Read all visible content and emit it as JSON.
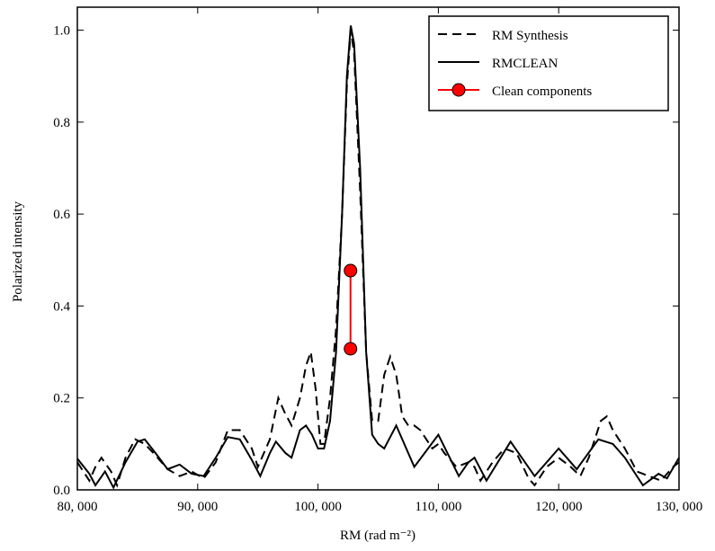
{
  "chart_data": {
    "type": "line",
    "x_label": "RM (rad m⁻²)",
    "y_label": "Polarized intensity",
    "xlim": [
      80000,
      130000
    ],
    "ylim": [
      0,
      1.05
    ],
    "xticks": [
      {
        "value": 80000,
        "label": "80, 000"
      },
      {
        "value": 90000,
        "label": "90, 000"
      },
      {
        "value": 100000,
        "label": "100, 000"
      },
      {
        "value": 110000,
        "label": "110, 000"
      },
      {
        "value": 120000,
        "label": "120, 000"
      },
      {
        "value": 130000,
        "label": "130, 000"
      }
    ],
    "yticks": [
      {
        "value": 0,
        "label": "0.0"
      },
      {
        "value": 0.2,
        "label": "0.2"
      },
      {
        "value": 0.4,
        "label": "0.4"
      },
      {
        "value": 0.6,
        "label": "0.6"
      },
      {
        "value": 0.8,
        "label": "0.8"
      },
      {
        "value": 1,
        "label": "1.0"
      }
    ],
    "grid": false,
    "legend": "upper right",
    "series": [
      {
        "name": "RM Synthesis",
        "color": "#000000",
        "linestyle": "dashed",
        "x": [
          80000,
          81000,
          81500,
          82000,
          82800,
          83300,
          84000,
          84800,
          85600,
          86500,
          87500,
          88500,
          89500,
          90500,
          91500,
          92500,
          93500,
          94500,
          95000,
          96000,
          96700,
          97200,
          97800,
          98500,
          99000,
          99400,
          99800,
          100200,
          100500,
          101000,
          101500,
          102000,
          102400,
          102720,
          103000,
          103500,
          104000,
          104500,
          105000,
          105500,
          106000,
          106500,
          107000,
          107500,
          108000,
          108500,
          109500,
          110000,
          110500,
          111500,
          112500,
          113000,
          113500,
          114500,
          115500,
          116500,
          117500,
          118000,
          119000,
          120000,
          121000,
          121800,
          122500,
          123500,
          124000,
          124500,
          125500,
          126500,
          127500,
          128500,
          129500,
          130000
        ],
        "values": [
          0.06,
          0.02,
          0.05,
          0.07,
          0.04,
          0.01,
          0.07,
          0.11,
          0.1,
          0.075,
          0.045,
          0.03,
          0.04,
          0.025,
          0.06,
          0.13,
          0.13,
          0.09,
          0.05,
          0.11,
          0.2,
          0.17,
          0.14,
          0.2,
          0.27,
          0.3,
          0.22,
          0.1,
          0.1,
          0.2,
          0.35,
          0.6,
          0.88,
          1.0,
          0.95,
          0.65,
          0.3,
          0.15,
          0.15,
          0.25,
          0.29,
          0.25,
          0.16,
          0.14,
          0.14,
          0.13,
          0.09,
          0.1,
          0.08,
          0.05,
          0.06,
          0.05,
          0.02,
          0.06,
          0.09,
          0.08,
          0.025,
          0.01,
          0.05,
          0.07,
          0.05,
          0.03,
          0.07,
          0.15,
          0.16,
          0.13,
          0.09,
          0.04,
          0.03,
          0.02,
          0.05,
          0.06
        ]
      },
      {
        "name": "RMCLEAN",
        "color": "#000000",
        "linestyle": "solid",
        "x": [
          80000,
          81000,
          81500,
          82300,
          83000,
          84000,
          85000,
          85600,
          86500,
          87500,
          88500,
          89500,
          90500,
          91500,
          92500,
          93500,
          94500,
          95200,
          96000,
          96500,
          97300,
          97800,
          98500,
          99000,
          99500,
          100000,
          100500,
          101000,
          101500,
          102000,
          102400,
          102720,
          103000,
          103500,
          104000,
          104500,
          105000,
          105500,
          106500,
          108000,
          110000,
          111700,
          112500,
          113000,
          114000,
          116000,
          118000,
          120000,
          121500,
          123300,
          124500,
          125500,
          127000,
          128300,
          129000,
          130000
        ],
        "values": [
          0.068,
          0.035,
          0.01,
          0.04,
          0.005,
          0.06,
          0.105,
          0.11,
          0.08,
          0.045,
          0.055,
          0.035,
          0.03,
          0.07,
          0.115,
          0.11,
          0.065,
          0.03,
          0.08,
          0.105,
          0.08,
          0.07,
          0.13,
          0.14,
          0.12,
          0.09,
          0.09,
          0.15,
          0.3,
          0.6,
          0.9,
          1.01,
          0.97,
          0.7,
          0.3,
          0.12,
          0.1,
          0.09,
          0.14,
          0.05,
          0.12,
          0.03,
          0.06,
          0.07,
          0.02,
          0.105,
          0.03,
          0.09,
          0.045,
          0.11,
          0.1,
          0.07,
          0.01,
          0.035,
          0.025,
          0.07
        ]
      },
      {
        "name": "Clean components",
        "color": "#ff0000",
        "linestyle": "solid",
        "marker": "o",
        "x": [
          102700,
          102700
        ],
        "values": [
          0.477,
          0.307
        ]
      }
    ]
  }
}
